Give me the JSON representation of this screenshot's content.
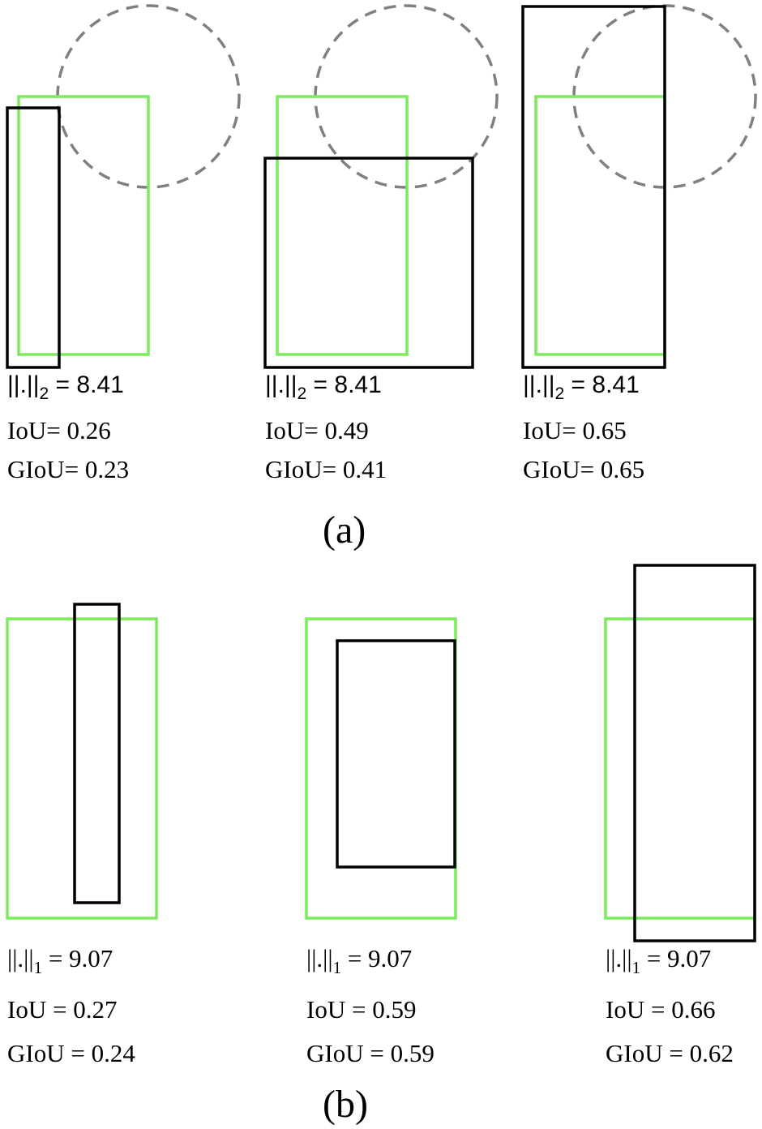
{
  "colors": {
    "ground_truth": "#7bea5c",
    "prediction": "#000000",
    "circle": "#808080"
  },
  "panel_a": {
    "label": "(a)",
    "columns": [
      {
        "norm": "||.||",
        "norm_sub": "2",
        "norm_value": "= 8.41",
        "iou": "IoU= 0.26",
        "giou": "GIoU= 0.23"
      },
      {
        "norm": "||.||",
        "norm_sub": "2",
        "norm_value": "= 8.41",
        "iou": "IoU= 0.49",
        "giou": "GIoU= 0.41"
      },
      {
        "norm": "||.||",
        "norm_sub": "2",
        "norm_value": "= 8.41",
        "iou": "IoU= 0.65",
        "giou": "GIoU= 0.65"
      }
    ]
  },
  "panel_b": {
    "label": "(b)",
    "columns": [
      {
        "norm": "||.||",
        "norm_sub": "1",
        "norm_value": "= 9.07",
        "iou": "IoU = 0.27",
        "giou": "GIoU = 0.24"
      },
      {
        "norm": "||.||",
        "norm_sub": "1",
        "norm_value": "= 9.07",
        "iou": "IoU = 0.59",
        "giou": "GIoU = 0.59"
      },
      {
        "norm": "||.||",
        "norm_sub": "1",
        "norm_value": "= 9.07",
        "iou": "IoU = 0.66",
        "giou": "GIoU = 0.62"
      }
    ]
  }
}
